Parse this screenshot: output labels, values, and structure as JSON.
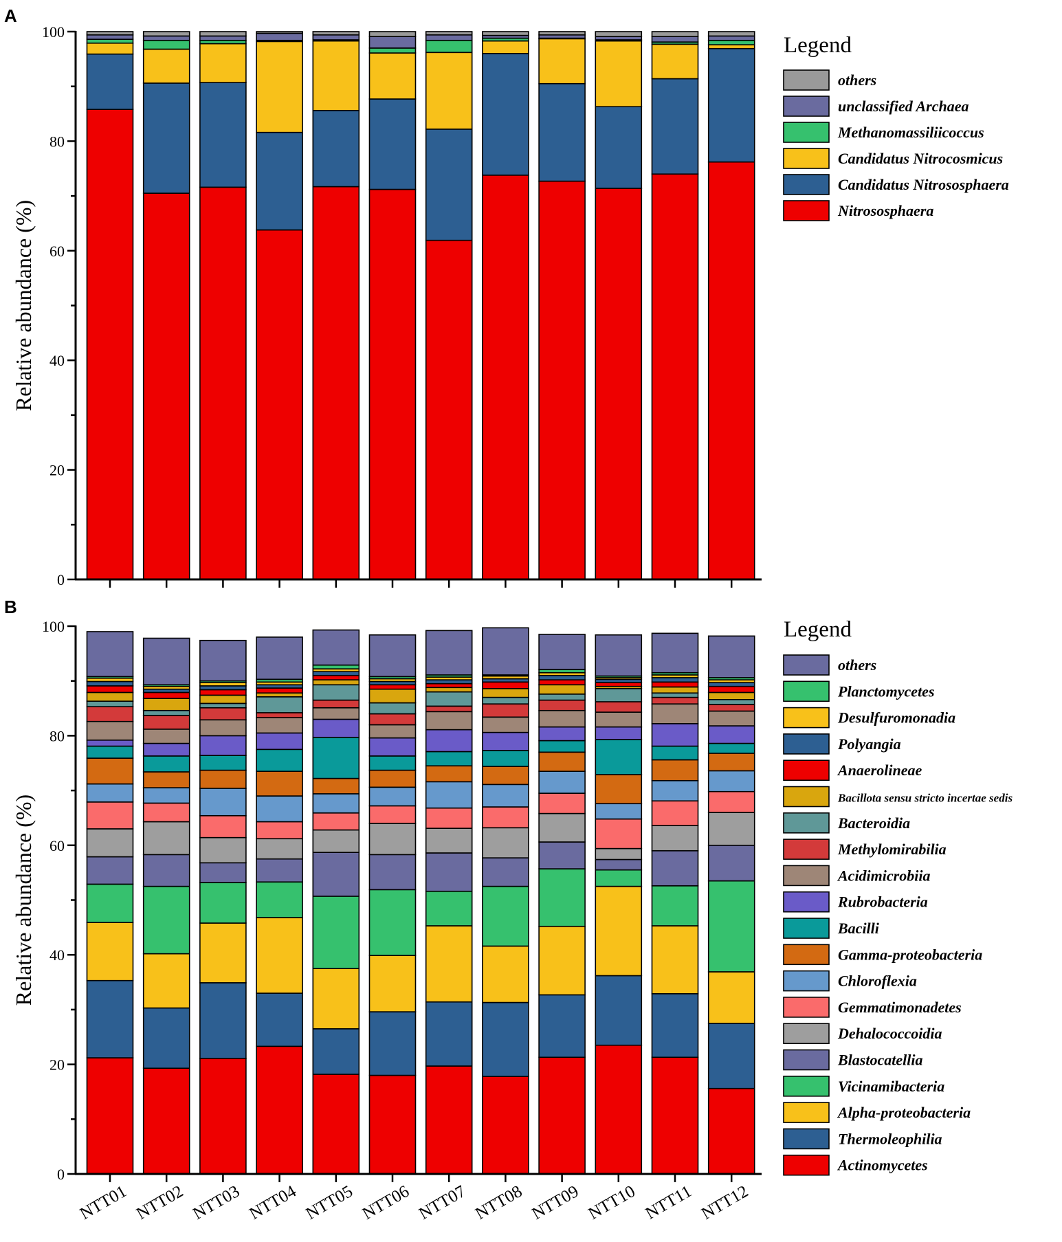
{
  "chart_data": [
    {
      "panel": "A",
      "type": "bar",
      "stacked": true,
      "ylabel": "Relative abundance (%)",
      "ylim": [
        0,
        100
      ],
      "yticks": [
        0,
        20,
        40,
        60,
        80,
        100
      ],
      "legend_title": "Legend",
      "categories": [
        "NTT01",
        "NTT02",
        "NTT03",
        "NTT04",
        "NTT05",
        "NTT06",
        "NTT07",
        "NTT08",
        "NTT09",
        "NTT10",
        "NTT11",
        "NTT12"
      ],
      "series": [
        {
          "name": "Nitrososphaera",
          "color": "#ee0000",
          "values": [
            85.8,
            70.5,
            71.6,
            63.8,
            71.7,
            71.2,
            61.9,
            73.8,
            72.7,
            71.4,
            74.0,
            76.2
          ]
        },
        {
          "name": "Candidatus Nitrososphaera",
          "color": "#2d5f92",
          "values": [
            10.1,
            20.1,
            19.1,
            17.8,
            13.9,
            16.5,
            20.3,
            22.2,
            17.8,
            14.9,
            17.4,
            20.7
          ]
        },
        {
          "name": "Candidatus Nitrocosmicus",
          "color": "#f8c11a",
          "values": [
            2.0,
            6.2,
            7.1,
            16.6,
            12.7,
            8.4,
            14.0,
            2.3,
            8.2,
            12.0,
            6.3,
            0.7
          ]
        },
        {
          "name": "Methanomassiliicoccus",
          "color": "#36c16e",
          "values": [
            0.7,
            1.6,
            0.6,
            0.2,
            0.2,
            0.9,
            2.2,
            0.5,
            0.1,
            0.2,
            0.4,
            0.8
          ]
        },
        {
          "name": "unclassified Archaea",
          "color": "#6a6b9f",
          "values": [
            0.8,
            0.8,
            0.8,
            1.3,
            0.9,
            2.1,
            1.0,
            0.5,
            0.6,
            0.6,
            1.0,
            0.8
          ]
        },
        {
          "name": "others",
          "color": "#9a9a9a",
          "values": [
            0.6,
            0.8,
            0.8,
            0.3,
            0.6,
            0.9,
            0.6,
            0.7,
            0.6,
            0.9,
            0.9,
            0.8
          ]
        }
      ]
    },
    {
      "panel": "B",
      "type": "bar",
      "stacked": true,
      "ylabel": "Relative abundance (%)",
      "ylim": [
        0,
        100
      ],
      "yticks": [
        0,
        20,
        40,
        60,
        80,
        100
      ],
      "legend_title": "Legend",
      "categories": [
        "NTT01",
        "NTT02",
        "NTT03",
        "NTT04",
        "NTT05",
        "NTT06",
        "NTT07",
        "NTT08",
        "NTT09",
        "NTT10",
        "NTT11",
        "NTT12"
      ],
      "series": [
        {
          "name": "Actinomycetes",
          "color": "#ee0000",
          "values": [
            21.2,
            19.3,
            21.1,
            23.3,
            18.2,
            18.0,
            19.7,
            17.8,
            21.3,
            23.5,
            21.3,
            15.6
          ]
        },
        {
          "name": "Thermoleophilia",
          "color": "#2d5f92",
          "values": [
            14.1,
            11.0,
            13.8,
            9.7,
            8.3,
            11.6,
            11.7,
            13.5,
            11.4,
            12.7,
            11.6,
            11.9
          ]
        },
        {
          "name": "Alpha-proteobacteria",
          "color": "#f8c11a",
          "values": [
            10.6,
            9.9,
            10.9,
            13.8,
            11.0,
            10.3,
            13.9,
            10.3,
            12.5,
            16.3,
            12.4,
            9.4
          ]
        },
        {
          "name": "Vicinamibacteria",
          "color": "#36c16e",
          "values": [
            7.0,
            12.3,
            7.4,
            6.5,
            13.2,
            12.0,
            6.3,
            10.9,
            10.5,
            3.0,
            7.3,
            16.6
          ]
        },
        {
          "name": "Blastocatellia",
          "color": "#6a6b9f",
          "values": [
            5.0,
            5.8,
            3.6,
            4.2,
            8.0,
            6.4,
            7.0,
            5.2,
            4.9,
            1.9,
            6.4,
            6.5
          ]
        },
        {
          "name": "Dehalococcoidia",
          "color": "#9e9e9e",
          "values": [
            5.1,
            6.0,
            4.6,
            3.7,
            4.1,
            5.7,
            4.5,
            5.5,
            5.2,
            2.0,
            4.6,
            6.0
          ]
        },
        {
          "name": "Gemmatimonadetes",
          "color": "#fa6b6b",
          "values": [
            4.9,
            3.4,
            4.0,
            3.1,
            3.1,
            3.2,
            3.7,
            3.8,
            3.7,
            5.4,
            4.5,
            3.8
          ]
        },
        {
          "name": "Chloroflexia",
          "color": "#6699cc",
          "values": [
            3.3,
            2.8,
            5.0,
            4.7,
            3.5,
            3.4,
            4.8,
            4.1,
            4.0,
            2.8,
            3.7,
            3.8
          ]
        },
        {
          "name": "Gamma-proteobacteria",
          "color": "#d36a12",
          "values": [
            4.7,
            2.9,
            3.3,
            4.5,
            2.8,
            3.1,
            2.9,
            3.3,
            3.5,
            5.3,
            3.8,
            3.2
          ]
        },
        {
          "name": "Bacilli",
          "color": "#0a9a9a",
          "values": [
            2.2,
            2.9,
            2.7,
            4.0,
            7.5,
            2.6,
            2.6,
            2.9,
            2.1,
            6.4,
            2.5,
            1.8
          ]
        },
        {
          "name": "Rubrobacteria",
          "color": "#6a5bc8",
          "values": [
            1.1,
            2.3,
            3.6,
            3.0,
            3.3,
            3.3,
            4.0,
            3.3,
            2.5,
            2.3,
            4.1,
            3.2
          ]
        },
        {
          "name": "Acidimicrobiia",
          "color": "#9e8677",
          "values": [
            3.4,
            2.6,
            2.9,
            2.8,
            2.1,
            2.4,
            3.3,
            2.8,
            3.0,
            2.7,
            3.6,
            2.7
          ]
        },
        {
          "name": "Methylomirabilia",
          "color": "#d33a3a",
          "values": [
            2.7,
            2.5,
            2.2,
            0.9,
            1.4,
            2.0,
            1.0,
            2.4,
            1.9,
            1.9,
            1.2,
            1.2
          ]
        },
        {
          "name": "Bacteroidia",
          "color": "#5f9898",
          "values": [
            1.0,
            0.9,
            0.8,
            2.9,
            2.8,
            2.0,
            2.6,
            1.2,
            1.1,
            2.4,
            0.8,
            0.9
          ]
        },
        {
          "name": "Bacillota sensu stricto incertae sedis",
          "color": "#d9a60e",
          "values": [
            1.6,
            2.2,
            1.5,
            0.7,
            0.9,
            2.5,
            0.8,
            1.6,
            1.7,
            0.4,
            1.1,
            1.3
          ]
        },
        {
          "name": "Anaerolineae",
          "color": "#ee0000",
          "values": [
            1.2,
            1.1,
            1.0,
            0.9,
            0.8,
            0.8,
            0.7,
            1.2,
            0.9,
            0.7,
            0.9,
            1.1
          ]
        },
        {
          "name": "Polyangia",
          "color": "#2d5f92",
          "values": [
            0.8,
            0.6,
            0.7,
            0.6,
            0.7,
            0.6,
            0.7,
            0.6,
            0.8,
            0.6,
            0.8,
            0.7
          ]
        },
        {
          "name": "Desulfuromonadia",
          "color": "#f8c11a",
          "values": [
            0.6,
            0.5,
            0.6,
            0.5,
            0.5,
            0.5,
            0.5,
            0.5,
            0.5,
            0.3,
            0.5,
            0.5
          ]
        },
        {
          "name": "Planctomycetes",
          "color": "#36c16e",
          "values": [
            0.3,
            0.3,
            0.3,
            0.5,
            0.7,
            0.4,
            0.4,
            0.2,
            0.6,
            0.3,
            0.4,
            0.4
          ]
        },
        {
          "name": "others",
          "color": "#6a6b9f",
          "values": [
            8.2,
            8.5,
            7.4,
            7.7,
            6.4,
            7.6,
            8.1,
            8.6,
            6.4,
            7.5,
            7.2,
            7.6
          ]
        }
      ]
    }
  ]
}
